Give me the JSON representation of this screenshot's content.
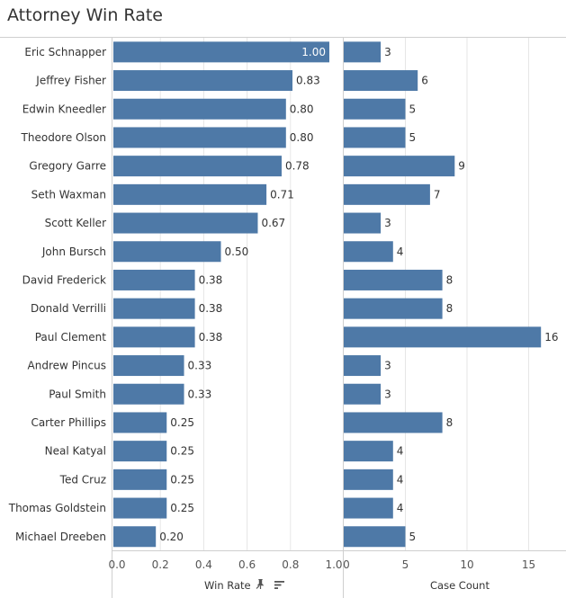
{
  "page_title": "Attorney Win Rate",
  "icons": {
    "pin": "pin-icon",
    "sort": "sort-descending-icon"
  },
  "colors": {
    "bar": "#4e79a7",
    "grid": "#e6e6e6",
    "axis": "#cfcfcf",
    "text": "#333333"
  },
  "chart_data": [
    {
      "type": "bar",
      "orientation": "horizontal",
      "xlabel": "Win Rate",
      "xlim": [
        0,
        1.0
      ],
      "xticks": [
        0.0,
        0.2,
        0.4,
        0.6,
        0.8,
        1.0
      ],
      "xtick_labels": [
        "0.0",
        "0.2",
        "0.4",
        "0.6",
        "0.8",
        "1.0"
      ],
      "categories": [
        "Eric Schnapper",
        "Jeffrey Fisher",
        "Edwin Kneedler",
        "Theodore Olson",
        "Gregory Garre",
        "Seth Waxman",
        "Scott Keller",
        "John Bursch",
        "David Frederick",
        "Donald Verrilli",
        "Paul Clement",
        "Andrew Pincus",
        "Paul Smith",
        "Carter Phillips",
        "Neal Katyal",
        "Ted Cruz",
        "Thomas Goldstein",
        "Michael Dreeben"
      ],
      "values": [
        1.0,
        0.83,
        0.8,
        0.8,
        0.78,
        0.71,
        0.67,
        0.5,
        0.38,
        0.38,
        0.38,
        0.33,
        0.33,
        0.25,
        0.25,
        0.25,
        0.25,
        0.2
      ],
      "value_labels": [
        "1.00",
        "0.83",
        "0.80",
        "0.80",
        "0.78",
        "0.71",
        "0.67",
        "0.50",
        "0.38",
        "0.38",
        "0.38",
        "0.33",
        "0.33",
        "0.25",
        "0.25",
        "0.25",
        "0.25",
        "0.20"
      ],
      "grid": true
    },
    {
      "type": "bar",
      "orientation": "horizontal",
      "xlabel": "Case Count",
      "xlim": [
        0,
        16.8
      ],
      "xticks": [
        0,
        5,
        10,
        15
      ],
      "xtick_labels": [
        "0",
        "5",
        "10",
        "15"
      ],
      "categories": [
        "Eric Schnapper",
        "Jeffrey Fisher",
        "Edwin Kneedler",
        "Theodore Olson",
        "Gregory Garre",
        "Seth Waxman",
        "Scott Keller",
        "John Bursch",
        "David Frederick",
        "Donald Verrilli",
        "Paul Clement",
        "Andrew Pincus",
        "Paul Smith",
        "Carter Phillips",
        "Neal Katyal",
        "Ted Cruz",
        "Thomas Goldstein",
        "Michael Dreeben"
      ],
      "values": [
        3,
        6,
        5,
        5,
        9,
        7,
        3,
        4,
        8,
        8,
        16,
        3,
        3,
        8,
        4,
        4,
        4,
        5
      ],
      "value_labels": [
        "3",
        "6",
        "5",
        "5",
        "9",
        "7",
        "3",
        "4",
        "8",
        "8",
        "16",
        "3",
        "3",
        "8",
        "4",
        "4",
        "4",
        "5"
      ],
      "grid": true
    }
  ]
}
